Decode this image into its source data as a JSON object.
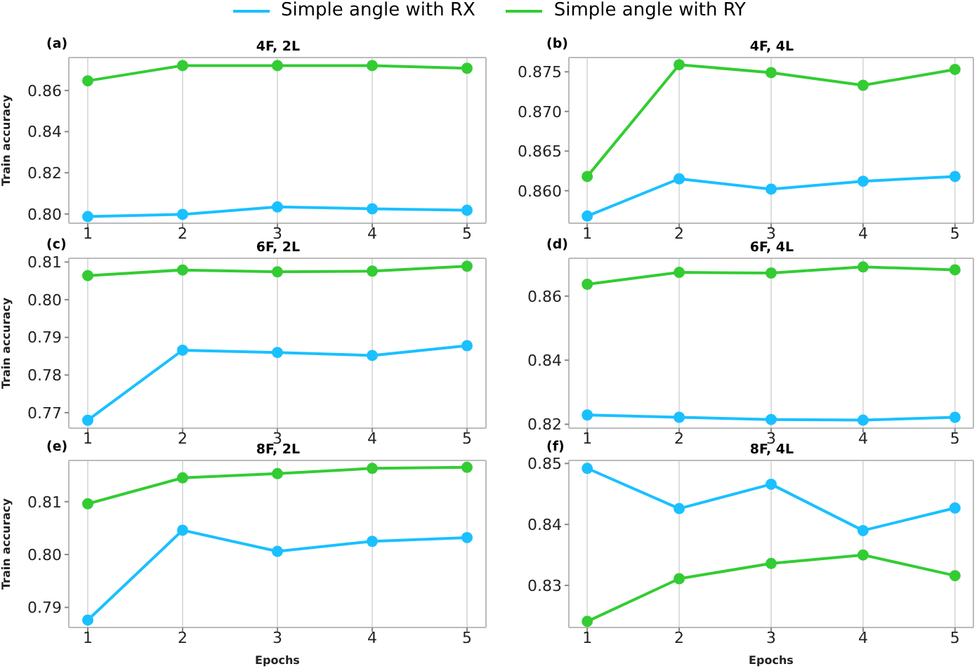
{
  "chart_data": [
    {
      "type": "line",
      "title": "4F, 2L",
      "ylabel": "Train accuracy",
      "annotations": [
        "(a)"
      ],
      "x": [
        1,
        2,
        3,
        4,
        5
      ],
      "xlim": [
        0.8,
        5.2
      ],
      "xticks": [
        1,
        2,
        3,
        4,
        5
      ],
      "ylim": [
        0.7955,
        0.876
      ],
      "yticks": [
        {
          "value": 0.8,
          "label": "0.80"
        },
        0.82,
        0.84,
        0.86
      ],
      "grid": "x",
      "marker": "circle",
      "line_style": "solid",
      "legend": "top",
      "series": [
        {
          "name": "Simple angle with RX",
          "color": "#1ac0ff",
          "values": [
            0.7987,
            0.7998,
            0.8034,
            0.8025,
            0.8018
          ]
        },
        {
          "name": "Simple angle with RY",
          "color": "#33cc33",
          "values": [
            0.8647,
            0.8721,
            0.8721,
            0.8721,
            0.8708
          ]
        }
      ]
    },
    {
      "type": "line",
      "title": "4F, 4L",
      "annotations": [
        "(b)"
      ],
      "x": [
        1,
        2,
        3,
        4,
        5
      ],
      "xlim": [
        0.8,
        5.2
      ],
      "xticks": [
        1,
        2,
        3,
        4,
        5
      ],
      "ylim": [
        0.8559,
        0.8768
      ],
      "yticks": [
        {
          "value": 0.86,
          "label": "0.860"
        },
        0.865,
        {
          "value": 0.87,
          "label": "0.870"
        },
        0.875
      ],
      "grid": "x",
      "marker": "circle",
      "line_style": "solid",
      "series": [
        {
          "color": "#1ac0ff",
          "values": [
            0.8568,
            0.8615,
            0.8602,
            0.8612,
            0.8618
          ]
        },
        {
          "color": "#33cc33",
          "values": [
            0.8618,
            0.8759,
            0.8749,
            0.8733,
            0.8753
          ]
        }
      ]
    },
    {
      "type": "line",
      "title": "6F, 2L",
      "ylabel": "Train accuracy",
      "annotations": [
        "(c)"
      ],
      "x": [
        1,
        2,
        3,
        4,
        5
      ],
      "xlim": [
        0.8,
        5.2
      ],
      "xticks": [
        1,
        2,
        3,
        4,
        5
      ],
      "ylim": [
        0.7659,
        0.811
      ],
      "yticks": [
        0.77,
        0.78,
        0.79,
        {
          "value": 0.8,
          "label": "0.80"
        },
        0.81
      ],
      "grid": "x",
      "marker": "circle",
      "line_style": "solid",
      "series": [
        {
          "color": "#1ac0ff",
          "values": [
            0.768,
            0.7866,
            0.786,
            0.7852,
            0.7878
          ]
        },
        {
          "color": "#33cc33",
          "values": [
            0.8064,
            0.8079,
            0.8074,
            0.8076,
            0.8089
          ]
        }
      ]
    },
    {
      "type": "line",
      "title": "6F, 4L",
      "annotations": [
        "(d)"
      ],
      "x": [
        1,
        2,
        3,
        4,
        5
      ],
      "xlim": [
        0.8,
        5.2
      ],
      "xticks": [
        1,
        2,
        3,
        4,
        5
      ],
      "ylim": [
        0.8188,
        0.8718
      ],
      "yticks": [
        0.82,
        0.84,
        0.86
      ],
      "grid": "x",
      "marker": "circle",
      "line_style": "solid",
      "series": [
        {
          "color": "#1ac0ff",
          "values": [
            0.8229,
            0.8222,
            0.8215,
            0.8213,
            0.8222
          ]
        },
        {
          "color": "#33cc33",
          "values": [
            0.8637,
            0.8674,
            0.8672,
            0.8691,
            0.8682
          ]
        }
      ]
    },
    {
      "type": "line",
      "title": "8F, 2L",
      "xlabel": "Epochs",
      "ylabel": "Train accuracy",
      "annotations": [
        "(e)"
      ],
      "x": [
        1,
        2,
        3,
        4,
        5
      ],
      "xlim": [
        0.8,
        5.2
      ],
      "xticks": [
        1,
        2,
        3,
        4,
        5
      ],
      "ylim": [
        0.7862,
        0.8178
      ],
      "yticks": [
        0.79,
        {
          "value": 0.8,
          "label": "0.80"
        },
        0.81
      ],
      "grid": "x",
      "marker": "circle",
      "line_style": "solid",
      "series": [
        {
          "color": "#1ac0ff",
          "values": [
            0.7876,
            0.8046,
            0.8006,
            0.8025,
            0.8032
          ]
        },
        {
          "color": "#33cc33",
          "values": [
            0.8096,
            0.8145,
            0.8153,
            0.8163,
            0.8165
          ]
        }
      ]
    },
    {
      "type": "line",
      "title": "8F, 4L",
      "xlabel": "Epochs",
      "annotations": [
        "(f)"
      ],
      "x": [
        1,
        2,
        3,
        4,
        5
      ],
      "xlim": [
        0.8,
        5.2
      ],
      "xticks": [
        1,
        2,
        3,
        4,
        5
      ],
      "ylim": [
        0.8231,
        0.8505
      ],
      "yticks": [
        0.83,
        0.84,
        0.85
      ],
      "grid": "x",
      "marker": "circle",
      "line_style": "solid",
      "series": [
        {
          "color": "#1ac0ff",
          "values": [
            0.8492,
            0.8426,
            0.8466,
            0.839,
            0.8427
          ]
        },
        {
          "color": "#33cc33",
          "values": [
            0.8241,
            0.8311,
            0.8336,
            0.835,
            0.8316
          ]
        }
      ]
    }
  ]
}
